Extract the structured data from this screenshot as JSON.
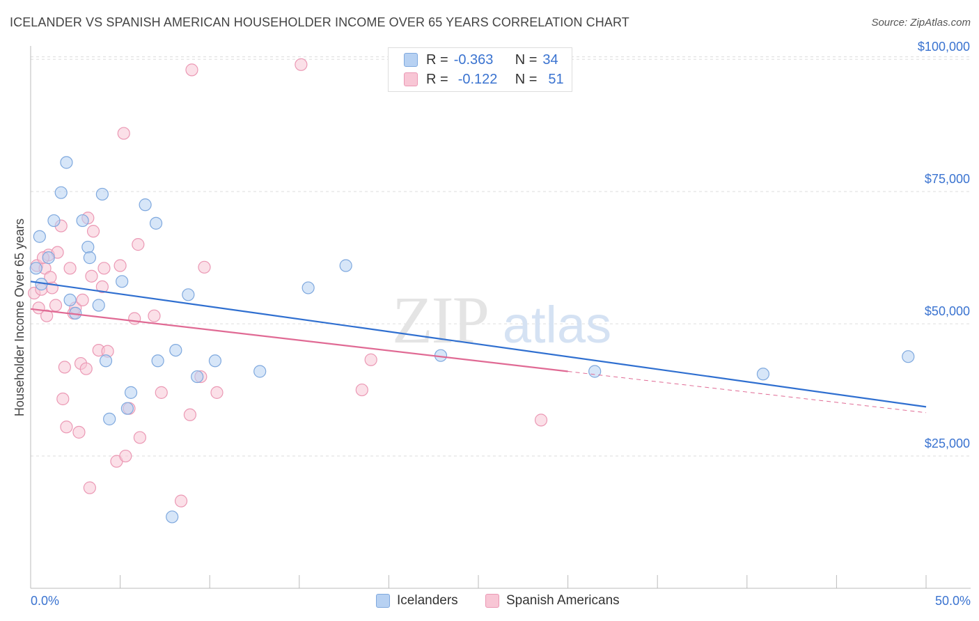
{
  "header": {
    "title": "ICELANDER VS SPANISH AMERICAN HOUSEHOLDER INCOME OVER 65 YEARS CORRELATION CHART",
    "source": "Source: ZipAtlas.com"
  },
  "watermark": {
    "zip": "ZIP",
    "atlas": "atlas"
  },
  "legend": {
    "r_label": "R =",
    "n_label": "N =",
    "rows": [
      {
        "r": "-0.363",
        "n": "34"
      },
      {
        "r": "-0.122",
        "n": "51"
      }
    ]
  },
  "colors": {
    "icelanders_fill": "#b7d1f2",
    "icelanders_stroke": "#7ea8de",
    "icelanders_line": "#2f6fd0",
    "spanish_fill": "#f8c6d5",
    "spanish_stroke": "#eb98b4",
    "spanish_line": "#e06a94",
    "axis_text": "#3a73d0",
    "grid": "#dddddd"
  },
  "chart_data": {
    "type": "scatter",
    "xlabel": "",
    "ylabel": "Householder Income Over 65 years",
    "xlim": [
      0,
      50
    ],
    "ylim": [
      0,
      102000
    ],
    "x_tick_labels": [
      "0.0%",
      "50.0%"
    ],
    "y_ticks": [
      25000,
      50000,
      75000,
      100000
    ],
    "y_tick_labels": [
      "$25,000",
      "$50,000",
      "$75,000",
      "$100,000"
    ],
    "grid": "horizontal dashed",
    "legend_position": "top-center and bottom",
    "series": [
      {
        "name": "Icelanders",
        "points": [
          [
            0.3,
            60500
          ],
          [
            0.5,
            66500
          ],
          [
            0.6,
            57500
          ],
          [
            1.0,
            62500
          ],
          [
            1.3,
            69500
          ],
          [
            1.7,
            74800
          ],
          [
            2.0,
            80500
          ],
          [
            2.2,
            54500
          ],
          [
            2.5,
            52000
          ],
          [
            2.9,
            69500
          ],
          [
            3.2,
            64500
          ],
          [
            3.3,
            62500
          ],
          [
            3.8,
            53500
          ],
          [
            4.0,
            74500
          ],
          [
            4.2,
            43000
          ],
          [
            4.4,
            32000
          ],
          [
            5.1,
            58000
          ],
          [
            5.4,
            34000
          ],
          [
            5.6,
            37000
          ],
          [
            6.4,
            72500
          ],
          [
            7.0,
            69000
          ],
          [
            7.1,
            43000
          ],
          [
            7.9,
            13500
          ],
          [
            8.1,
            45000
          ],
          [
            8.8,
            55500
          ],
          [
            9.3,
            40000
          ],
          [
            10.3,
            43000
          ],
          [
            12.8,
            41000
          ],
          [
            15.5,
            56800
          ],
          [
            17.6,
            61000
          ],
          [
            22.9,
            44000
          ],
          [
            31.5,
            41000
          ],
          [
            40.9,
            40500
          ],
          [
            49.0,
            43800
          ]
        ]
      },
      {
        "name": "Spanish Americans",
        "points": [
          [
            0.2,
            55800
          ],
          [
            0.35,
            61000
          ],
          [
            0.45,
            53000
          ],
          [
            0.6,
            56500
          ],
          [
            0.8,
            60500
          ],
          [
            0.9,
            51500
          ],
          [
            1.0,
            63000
          ],
          [
            1.2,
            56800
          ],
          [
            1.4,
            53500
          ],
          [
            1.5,
            63500
          ],
          [
            1.7,
            68500
          ],
          [
            1.8,
            35800
          ],
          [
            1.9,
            41800
          ],
          [
            2.0,
            30500
          ],
          [
            2.2,
            60500
          ],
          [
            2.4,
            52000
          ],
          [
            2.5,
            53000
          ],
          [
            2.7,
            29500
          ],
          [
            2.8,
            42500
          ],
          [
            2.9,
            54500
          ],
          [
            3.1,
            41500
          ],
          [
            3.2,
            70000
          ],
          [
            3.3,
            19000
          ],
          [
            3.4,
            59000
          ],
          [
            3.5,
            67500
          ],
          [
            3.8,
            45000
          ],
          [
            4.0,
            57000
          ],
          [
            4.1,
            60500
          ],
          [
            4.3,
            44800
          ],
          [
            4.8,
            24000
          ],
          [
            5.0,
            61000
          ],
          [
            5.2,
            86000
          ],
          [
            5.3,
            25000
          ],
          [
            5.5,
            34000
          ],
          [
            5.8,
            51000
          ],
          [
            6.0,
            65000
          ],
          [
            6.1,
            28500
          ],
          [
            6.9,
            51500
          ],
          [
            7.3,
            37000
          ],
          [
            8.4,
            16500
          ],
          [
            8.9,
            32800
          ],
          [
            9.0,
            98000
          ],
          [
            9.5,
            40000
          ],
          [
            9.7,
            60700
          ],
          [
            10.4,
            37000
          ],
          [
            15.1,
            99000
          ],
          [
            18.5,
            37500
          ],
          [
            19.0,
            43200
          ],
          [
            28.5,
            31800
          ],
          [
            1.1,
            58800
          ],
          [
            0.7,
            62500
          ]
        ]
      }
    ],
    "trendlines": [
      {
        "name": "Icelanders",
        "from": [
          0,
          58000
        ],
        "to": [
          50,
          34300
        ],
        "style": "solid"
      },
      {
        "name": "Spanish Americans",
        "from": [
          0,
          52800
        ],
        "to": [
          30,
          41000
        ],
        "style": "solid"
      },
      {
        "name": "Spanish Americans",
        "from": [
          30,
          41000
        ],
        "to": [
          50,
          33200
        ],
        "style": "dashed"
      }
    ]
  }
}
